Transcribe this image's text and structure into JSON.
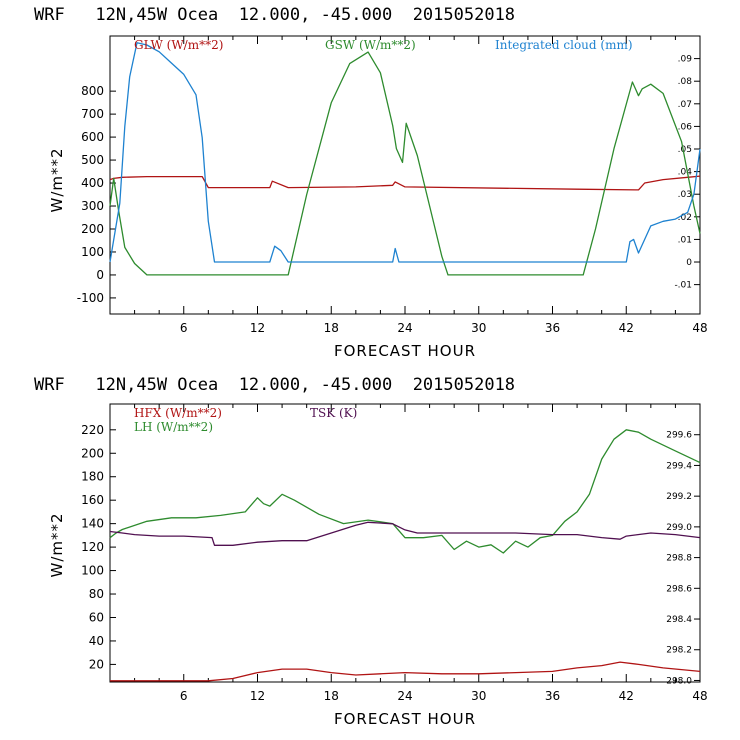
{
  "chart_data": [
    {
      "type": "line",
      "title": "WRF   12N,45W Ocea  12.000, -45.000  2015052018",
      "xlabel": "FORECAST HOUR",
      "ylabel": "W/m**2",
      "xlim": [
        0,
        48
      ],
      "ylim": [
        -170,
        1040
      ],
      "xticks": [
        "6",
        "12",
        "18",
        "24",
        "30",
        "36",
        "42",
        "48"
      ],
      "yticks": [
        "-100",
        "0",
        "100",
        "200",
        "300",
        "400",
        "500",
        "600",
        "700",
        "800"
      ],
      "y2lim": [
        -0.023,
        0.1
      ],
      "y2ticks": [
        "-.01",
        "0",
        ".01",
        ".02",
        ".03",
        ".04",
        ".05",
        ".06",
        ".07",
        ".08",
        ".09"
      ],
      "series": [
        {
          "name": "GLW (W/m**2)",
          "color": "#b01414",
          "axis": "left",
          "x": [
            0,
            0.3,
            1,
            3,
            6,
            7.5,
            8,
            13,
            13.2,
            14.5,
            20,
            23,
            23.2,
            24,
            38,
            43,
            43.5,
            45,
            47,
            48
          ],
          "y": [
            415,
            420,
            425,
            428,
            428,
            428,
            380,
            380,
            408,
            380,
            383,
            390,
            405,
            383,
            373,
            370,
            400,
            415,
            425,
            430
          ]
        },
        {
          "name": "GSW (W/m**2)",
          "color": "#2e8b2e",
          "axis": "left",
          "x": [
            0,
            0.3,
            0.7,
            1.2,
            2,
            3,
            6,
            12,
            14.5,
            16,
            18,
            19.5,
            21,
            22,
            23,
            23.3,
            23.8,
            24.1,
            25,
            26,
            27,
            27.5,
            38.5,
            39.5,
            41,
            42.5,
            43,
            43.3,
            44,
            45,
            46.5,
            47.5,
            48
          ],
          "y": [
            300,
            420,
            280,
            120,
            50,
            0,
            0,
            0,
            0,
            350,
            750,
            920,
            970,
            880,
            650,
            550,
            490,
            660,
            520,
            300,
            80,
            0,
            0,
            200,
            550,
            840,
            780,
            810,
            830,
            790,
            580,
            300,
            180
          ]
        },
        {
          "name": "Integrated cloud (mm)",
          "color": "#1e82d0",
          "axis": "right",
          "x": [
            0,
            0.4,
            0.8,
            1.2,
            1.6,
            2.2,
            3,
            4,
            5,
            6,
            7,
            7.5,
            8,
            8.5,
            13,
            13.4,
            13.9,
            14.5,
            15,
            23,
            23.2,
            23.5,
            24,
            42,
            42.3,
            42.6,
            43,
            44,
            45,
            46,
            47,
            47.5,
            48
          ],
          "y": [
            0.0,
            0.013,
            0.026,
            0.06,
            0.082,
            0.097,
            0.096,
            0.093,
            0.088,
            0.083,
            0.074,
            0.055,
            0.018,
            0.0,
            0.0,
            0.007,
            0.005,
            0.0,
            0.0,
            0.0,
            0.006,
            0.0,
            0.0,
            0.0,
            0.009,
            0.01,
            0.004,
            0.016,
            0.018,
            0.019,
            0.022,
            0.03,
            0.05
          ]
        }
      ]
    },
    {
      "type": "line",
      "title": "WRF   12N,45W Ocea  12.000, -45.000  2015052018",
      "xlabel": "FORECAST HOUR",
      "ylabel": "W/m**2",
      "xlim": [
        0,
        48
      ],
      "ylim": [
        5,
        242
      ],
      "xticks": [
        "6",
        "12",
        "18",
        "24",
        "30",
        "36",
        "42",
        "48"
      ],
      "yticks": [
        "20",
        "40",
        "60",
        "80",
        "100",
        "120",
        "140",
        "160",
        "180",
        "200",
        "220"
      ],
      "y2lim": [
        297.99,
        299.8
      ],
      "y2ticks": [
        "298.0",
        "298.2",
        "298.4",
        "298.6",
        "298.8",
        "299.0",
        "299.2",
        "299.4",
        "299.6"
      ],
      "series": [
        {
          "name": "HFX (W/m**2)",
          "color": "#b01414",
          "axis": "left",
          "x": [
            0,
            3,
            6,
            8,
            10,
            12,
            14,
            16,
            18,
            20,
            22,
            24,
            27,
            30,
            33,
            36,
            38,
            40,
            41.5,
            43,
            45,
            48
          ],
          "y": [
            6,
            6,
            6,
            6,
            8,
            13,
            16,
            16,
            13,
            11,
            12,
            13,
            12,
            12,
            13,
            14,
            17,
            19,
            22,
            20,
            17,
            14
          ]
        },
        {
          "name": "LH (W/m**2)",
          "color": "#2e8b2e",
          "axis": "left",
          "x": [
            0,
            0.5,
            1,
            3,
            5,
            7,
            9,
            11,
            12,
            12.5,
            13,
            14,
            15,
            17,
            19,
            21,
            23,
            24,
            25.5,
            27,
            28,
            29,
            30,
            31,
            32,
            33,
            34,
            35,
            36,
            37,
            38,
            39,
            40,
            41,
            42,
            43,
            44,
            46,
            48
          ],
          "y": [
            128,
            132,
            135,
            142,
            145,
            145,
            147,
            150,
            162,
            157,
            155,
            165,
            160,
            148,
            140,
            143,
            140,
            128,
            128,
            130,
            118,
            125,
            120,
            122,
            115,
            125,
            120,
            128,
            130,
            142,
            150,
            165,
            195,
            212,
            220,
            218,
            212,
            202,
            192
          ]
        },
        {
          "name": "TSK (K)",
          "color": "#501050",
          "axis": "right",
          "x": [
            0,
            1,
            2,
            4,
            6,
            8.3,
            8.5,
            10,
            12,
            14,
            16,
            18,
            20,
            21,
            23,
            24,
            25,
            27,
            30,
            33,
            36,
            38,
            40,
            41.5,
            42,
            44,
            46,
            48
          ],
          "y": [
            298.97,
            298.96,
            298.95,
            298.94,
            298.94,
            298.93,
            298.88,
            298.88,
            298.9,
            298.91,
            298.91,
            298.96,
            299.01,
            299.03,
            299.02,
            298.98,
            298.96,
            298.96,
            298.96,
            298.96,
            298.95,
            298.95,
            298.93,
            298.92,
            298.94,
            298.96,
            298.95,
            298.93
          ]
        }
      ]
    }
  ]
}
